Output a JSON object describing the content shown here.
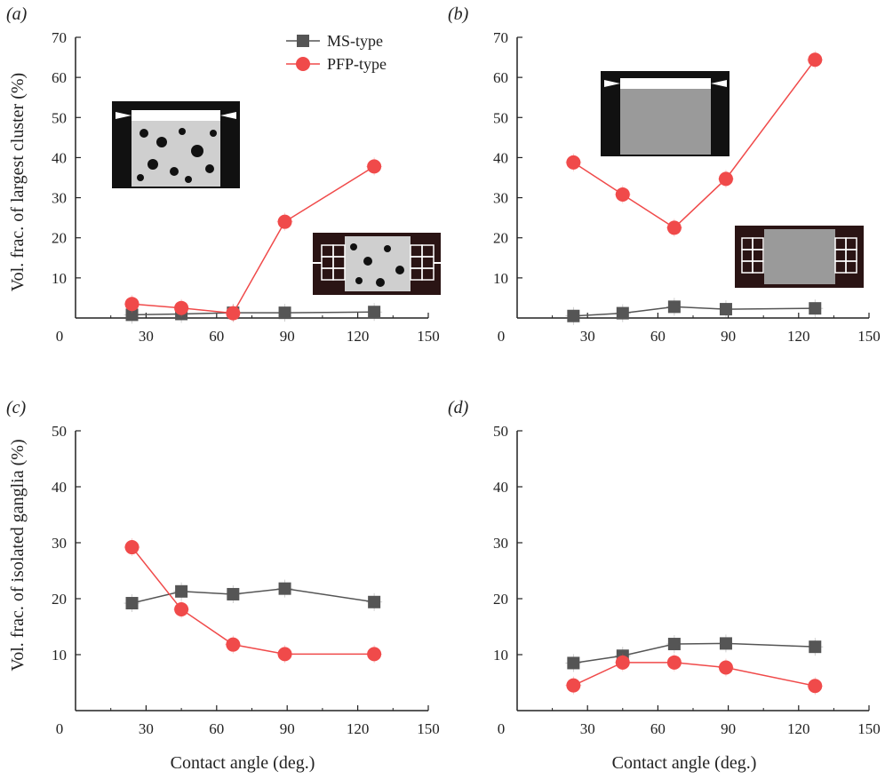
{
  "figure": {
    "ylabel_top": "Vol. frac. of largest cluster (%)",
    "ylabel_bottom": "Vol. frac. of isolated ganglia (%)",
    "xlabel": "Contact angle (deg.)"
  },
  "legend": [
    {
      "name": "MS-type",
      "color": "#555555",
      "marker": "square"
    },
    {
      "name": "PFP-type",
      "color": "#f04a4a",
      "marker": "circle"
    }
  ],
  "chart_data": [
    {
      "panel": "(a)",
      "type": "line",
      "xlim": [
        0,
        150
      ],
      "ylim": [
        0,
        70
      ],
      "xticks": [
        "0",
        "30",
        "60",
        "90",
        "120",
        "150"
      ],
      "yticks": [
        "10",
        "20",
        "30",
        "40",
        "50",
        "60",
        "70"
      ],
      "series": [
        {
          "name": "MS-type",
          "x": [
            24,
            45,
            67,
            89,
            127
          ],
          "y": [
            0.8,
            1.0,
            1.3,
            1.3,
            1.5
          ]
        },
        {
          "name": "PFP-type",
          "x": [
            24,
            45,
            67,
            89,
            127
          ],
          "y": [
            3.5,
            2.5,
            1.2,
            24.0,
            37.8
          ]
        }
      ]
    },
    {
      "panel": "(b)",
      "type": "line",
      "xlim": [
        0,
        150
      ],
      "ylim": [
        0,
        70
      ],
      "xticks": [
        "0",
        "30",
        "60",
        "90",
        "120",
        "150"
      ],
      "yticks": [
        "10",
        "20",
        "30",
        "40",
        "50",
        "60",
        "70"
      ],
      "series": [
        {
          "name": "MS-type",
          "x": [
            24,
            45,
            67,
            89,
            127
          ],
          "y": [
            0.5,
            1.2,
            2.8,
            2.2,
            2.4
          ]
        },
        {
          "name": "PFP-type",
          "x": [
            24,
            45,
            67,
            89,
            127
          ],
          "y": [
            38.8,
            30.8,
            22.5,
            34.7,
            64.4
          ]
        }
      ]
    },
    {
      "panel": "(c)",
      "type": "line",
      "xlim": [
        0,
        150
      ],
      "ylim": [
        0,
        50
      ],
      "xticks": [
        "0",
        "30",
        "60",
        "90",
        "120",
        "150"
      ],
      "yticks": [
        "10",
        "20",
        "30",
        "40",
        "50"
      ],
      "series": [
        {
          "name": "MS-type",
          "x": [
            24,
            45,
            67,
            89,
            127
          ],
          "y": [
            19.2,
            21.3,
            20.8,
            21.8,
            19.4
          ]
        },
        {
          "name": "PFP-type",
          "x": [
            24,
            45,
            67,
            89,
            127
          ],
          "y": [
            29.2,
            18.1,
            11.8,
            10.1,
            10.1
          ]
        }
      ]
    },
    {
      "panel": "(d)",
      "type": "line",
      "xlim": [
        0,
        150
      ],
      "ylim": [
        0,
        50
      ],
      "xticks": [
        "0",
        "30",
        "60",
        "90",
        "120",
        "150"
      ],
      "yticks": [
        "10",
        "20",
        "30",
        "40",
        "50"
      ],
      "series": [
        {
          "name": "MS-type",
          "x": [
            24,
            45,
            67,
            89,
            127
          ],
          "y": [
            8.5,
            9.8,
            11.9,
            12.0,
            11.4
          ]
        },
        {
          "name": "PFP-type",
          "x": [
            24,
            45,
            67,
            89,
            127
          ],
          "y": [
            4.5,
            8.6,
            8.6,
            7.7,
            4.4
          ]
        }
      ]
    }
  ]
}
